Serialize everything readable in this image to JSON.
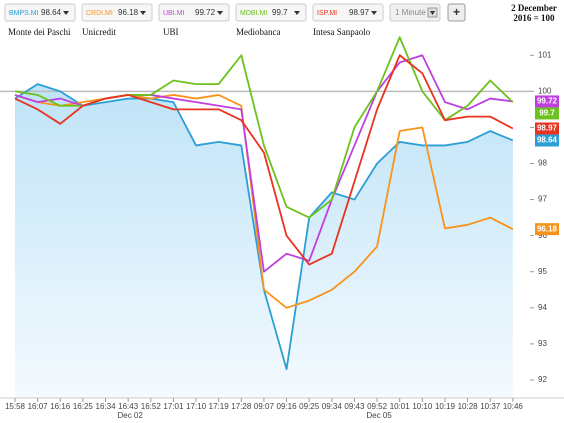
{
  "chart_data": {
    "type": "line",
    "annotation": [
      "2 December",
      "2016 = 100"
    ],
    "interval": "1 Minute",
    "add_button": "+",
    "categories": [
      "15:58",
      "16:07",
      "16:16",
      "16:25",
      "16:34",
      "16:43",
      "16:52",
      "17:01",
      "17:10",
      "17:19",
      "17:28",
      "09:07",
      "09:16",
      "09:25",
      "09:34",
      "09:43",
      "09:52",
      "10:01",
      "10:10",
      "10:19",
      "10:28",
      "10:37",
      "10:46"
    ],
    "dates": [
      "Dec 02",
      "Dec 05"
    ],
    "ylim": [
      91.5,
      101.7
    ],
    "yticks": [
      92,
      93,
      94,
      95,
      96,
      97,
      98,
      99,
      100,
      101
    ],
    "reference": 100,
    "series": [
      {
        "name": "BMPS.MI",
        "company": "Monte dei Paschi",
        "color": "#2a9fd6",
        "area": true,
        "values": [
          99.8,
          100.2,
          100,
          99.6,
          99.7,
          99.8,
          99.8,
          99.7,
          98.5,
          98.6,
          98.5,
          94.5,
          92.3,
          96.5,
          97.2,
          97,
          98,
          98.6,
          98.5,
          98.5,
          98.6,
          98.9,
          98.64
        ]
      },
      {
        "name": "CRDI.MI",
        "company": "Unicredit",
        "color": "#f7941d",
        "values": [
          99.9,
          99.7,
          99.6,
          99.7,
          99.8,
          99.9,
          99.8,
          99.9,
          99.8,
          99.9,
          99.6,
          94.5,
          94,
          94.2,
          94.5,
          95,
          95.7,
          98.9,
          99,
          96.2,
          96.3,
          96.5,
          96.18
        ]
      },
      {
        "name": "UBI.MI",
        "company": "UBI",
        "color": "#c03fe0",
        "values": [
          99.9,
          99.7,
          99.8,
          99.6,
          99.8,
          99.9,
          99.9,
          99.8,
          99.7,
          99.6,
          99.5,
          95,
          95.5,
          95.3,
          97,
          98.5,
          100,
          100.8,
          101,
          99.7,
          99.5,
          99.8,
          99.72
        ]
      },
      {
        "name": "MDBI.MI",
        "company": "Mediobanca",
        "color": "#6cc11e",
        "values": [
          100,
          99.9,
          99.6,
          99.6,
          99.8,
          99.9,
          99.9,
          100.3,
          100.2,
          100.2,
          101,
          98.5,
          96.8,
          96.5,
          97,
          99,
          100,
          101.5,
          100,
          99.2,
          99.6,
          100.3,
          99.7
        ]
      },
      {
        "name": "ISP.MI",
        "company": "Intesa Sanpaolo",
        "color": "#e8331e",
        "values": [
          99.8,
          99.5,
          99.1,
          99.6,
          99.8,
          99.9,
          99.7,
          99.5,
          99.5,
          99.5,
          99.2,
          98.3,
          96,
          95.2,
          95.5,
          97.5,
          99.5,
          101,
          100.5,
          99.2,
          99.3,
          99.3,
          98.97
        ]
      }
    ]
  }
}
